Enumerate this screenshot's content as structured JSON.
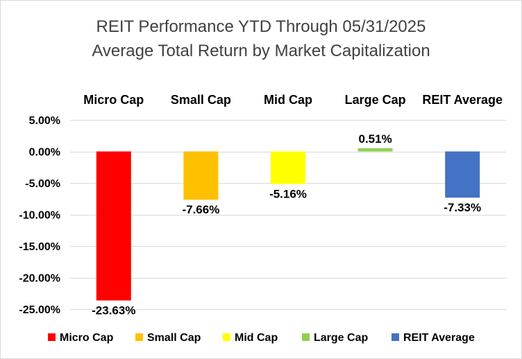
{
  "chart_data": {
    "type": "bar",
    "title": "REIT Performance YTD Through 05/31/2025",
    "subtitle": "Average Total Return by Market Capitalization",
    "categories": [
      "Micro Cap",
      "Small Cap",
      "Mid Cap",
      "Large Cap",
      "REIT Average"
    ],
    "values": [
      -23.63,
      -7.66,
      -5.16,
      0.51,
      -7.33
    ],
    "value_labels": [
      "-23.63%",
      "-7.66%",
      "-5.16%",
      "0.51%",
      "-7.33%"
    ],
    "colors": [
      "#ff0000",
      "#ffc000",
      "#ffff00",
      "#92d050",
      "#4472c4"
    ],
    "ylim": [
      -25,
      5
    ],
    "yticks": [
      5,
      0,
      -5,
      -10,
      -15,
      -20,
      -25
    ],
    "ytick_labels": [
      "5.00%",
      "0.00%",
      "-5.00%",
      "-10.00%",
      "-15.00%",
      "-20.00%",
      "-25.00%"
    ],
    "xlabel": "",
    "ylabel": "",
    "grid": true,
    "category_labels_position": "top",
    "legend": {
      "position": "bottom",
      "entries": [
        "Micro Cap",
        "Small Cap",
        "Mid Cap",
        "Large Cap",
        "REIT Average"
      ]
    }
  }
}
